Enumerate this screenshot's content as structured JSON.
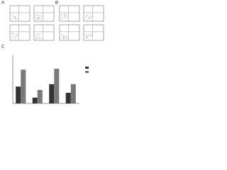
{
  "panels": [
    {
      "label": "A"
    },
    {
      "label": "B"
    }
  ],
  "chart_data": {
    "type": "bar",
    "label": "C",
    "categories": [
      null,
      null,
      null,
      null
    ],
    "series": [
      {
        "color": "#333333",
        "values": [
          35,
          12,
          40,
          22
        ]
      },
      {
        "color": "#7a7a7a",
        "values": [
          70,
          28,
          72,
          40
        ]
      }
    ],
    "ylim": [
      0,
      100
    ]
  }
}
